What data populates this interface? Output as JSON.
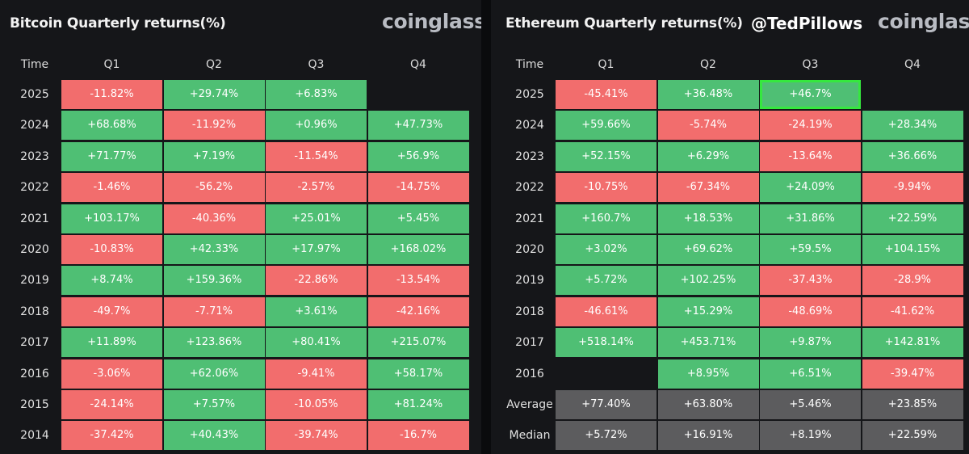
{
  "colors": {
    "positive": "#4fbf74",
    "negative": "#f26d6d",
    "stat": "#5c5c5e",
    "highlight": "#35e83e",
    "background": "#151619"
  },
  "handle": "@TedPillows",
  "chart_data": [
    {
      "type": "table",
      "title": "Bitcoin Quarterly returns(%)",
      "logo": "coinglass",
      "row_header": "Time",
      "columns": [
        "Q1",
        "Q2",
        "Q3",
        "Q4"
      ],
      "rows": [
        {
          "label": "2025",
          "values": [
            -11.82,
            29.74,
            6.83,
            null
          ],
          "display": [
            "-11.82%",
            "+29.74%",
            "+6.83%",
            ""
          ]
        },
        {
          "label": "2024",
          "values": [
            68.68,
            -11.92,
            0.96,
            47.73
          ],
          "display": [
            "+68.68%",
            "-11.92%",
            "+0.96%",
            "+47.73%"
          ]
        },
        {
          "label": "2023",
          "values": [
            71.77,
            7.19,
            -11.54,
            56.9
          ],
          "display": [
            "+71.77%",
            "+7.19%",
            "-11.54%",
            "+56.9%"
          ]
        },
        {
          "label": "2022",
          "values": [
            -1.46,
            -56.2,
            -2.57,
            -14.75
          ],
          "display": [
            "-1.46%",
            "-56.2%",
            "-2.57%",
            "-14.75%"
          ]
        },
        {
          "label": "2021",
          "values": [
            103.17,
            -40.36,
            25.01,
            5.45
          ],
          "display": [
            "+103.17%",
            "-40.36%",
            "+25.01%",
            "+5.45%"
          ]
        },
        {
          "label": "2020",
          "values": [
            -10.83,
            42.33,
            17.97,
            168.02
          ],
          "display": [
            "-10.83%",
            "+42.33%",
            "+17.97%",
            "+168.02%"
          ]
        },
        {
          "label": "2019",
          "values": [
            8.74,
            159.36,
            -22.86,
            -13.54
          ],
          "display": [
            "+8.74%",
            "+159.36%",
            "-22.86%",
            "-13.54%"
          ]
        },
        {
          "label": "2018",
          "values": [
            -49.7,
            -7.71,
            3.61,
            -42.16
          ],
          "display": [
            "-49.7%",
            "-7.71%",
            "+3.61%",
            "-42.16%"
          ]
        },
        {
          "label": "2017",
          "values": [
            11.89,
            123.86,
            80.41,
            215.07
          ],
          "display": [
            "+11.89%",
            "+123.86%",
            "+80.41%",
            "+215.07%"
          ]
        },
        {
          "label": "2016",
          "values": [
            -3.06,
            62.06,
            -9.41,
            58.17
          ],
          "display": [
            "-3.06%",
            "+62.06%",
            "-9.41%",
            "+58.17%"
          ]
        },
        {
          "label": "2015",
          "values": [
            -24.14,
            7.57,
            -10.05,
            81.24
          ],
          "display": [
            "-24.14%",
            "+7.57%",
            "-10.05%",
            "+81.24%"
          ]
        },
        {
          "label": "2014",
          "values": [
            -37.42,
            40.43,
            -39.74,
            -16.7
          ],
          "display": [
            "-37.42%",
            "+40.43%",
            "-39.74%",
            "-16.7%"
          ]
        }
      ]
    },
    {
      "type": "table",
      "title": "Ethereum Quarterly returns(%)",
      "logo": "coinglass",
      "row_header": "Time",
      "columns": [
        "Q1",
        "Q2",
        "Q3",
        "Q4"
      ],
      "highlighted_cell": {
        "row": "2025",
        "column": "Q3"
      },
      "rows": [
        {
          "label": "2025",
          "values": [
            -45.41,
            36.48,
            46.7,
            null
          ],
          "display": [
            "-45.41%",
            "+36.48%",
            "+46.7%",
            ""
          ]
        },
        {
          "label": "2024",
          "values": [
            59.66,
            -5.74,
            -24.19,
            28.34
          ],
          "display": [
            "+59.66%",
            "-5.74%",
            "-24.19%",
            "+28.34%"
          ]
        },
        {
          "label": "2023",
          "values": [
            52.15,
            6.29,
            -13.64,
            36.66
          ],
          "display": [
            "+52.15%",
            "+6.29%",
            "-13.64%",
            "+36.66%"
          ]
        },
        {
          "label": "2022",
          "values": [
            -10.75,
            -67.34,
            24.09,
            -9.94
          ],
          "display": [
            "-10.75%",
            "-67.34%",
            "+24.09%",
            "-9.94%"
          ]
        },
        {
          "label": "2021",
          "values": [
            160.7,
            18.53,
            31.86,
            22.59
          ],
          "display": [
            "+160.7%",
            "+18.53%",
            "+31.86%",
            "+22.59%"
          ]
        },
        {
          "label": "2020",
          "values": [
            3.02,
            69.62,
            59.5,
            104.15
          ],
          "display": [
            "+3.02%",
            "+69.62%",
            "+59.5%",
            "+104.15%"
          ]
        },
        {
          "label": "2019",
          "values": [
            5.72,
            102.25,
            -37.43,
            -28.9
          ],
          "display": [
            "+5.72%",
            "+102.25%",
            "-37.43%",
            "-28.9%"
          ]
        },
        {
          "label": "2018",
          "values": [
            -46.61,
            15.29,
            -48.69,
            -41.62
          ],
          "display": [
            "-46.61%",
            "+15.29%",
            "-48.69%",
            "-41.62%"
          ]
        },
        {
          "label": "2017",
          "values": [
            518.14,
            453.71,
            9.87,
            142.81
          ],
          "display": [
            "+518.14%",
            "+453.71%",
            "+9.87%",
            "+142.81%"
          ]
        },
        {
          "label": "2016",
          "values": [
            null,
            8.95,
            6.51,
            -39.47
          ],
          "display": [
            "",
            "+8.95%",
            "+6.51%",
            "-39.47%"
          ]
        }
      ],
      "summary_rows": [
        {
          "label": "Average",
          "values": [
            77.4,
            63.8,
            5.46,
            23.85
          ],
          "display": [
            "+77.40%",
            "+63.80%",
            "+5.46%",
            "+23.85%"
          ]
        },
        {
          "label": "Median",
          "values": [
            5.72,
            16.91,
            8.19,
            22.59
          ],
          "display": [
            "+5.72%",
            "+16.91%",
            "+8.19%",
            "+22.59%"
          ]
        }
      ]
    }
  ]
}
